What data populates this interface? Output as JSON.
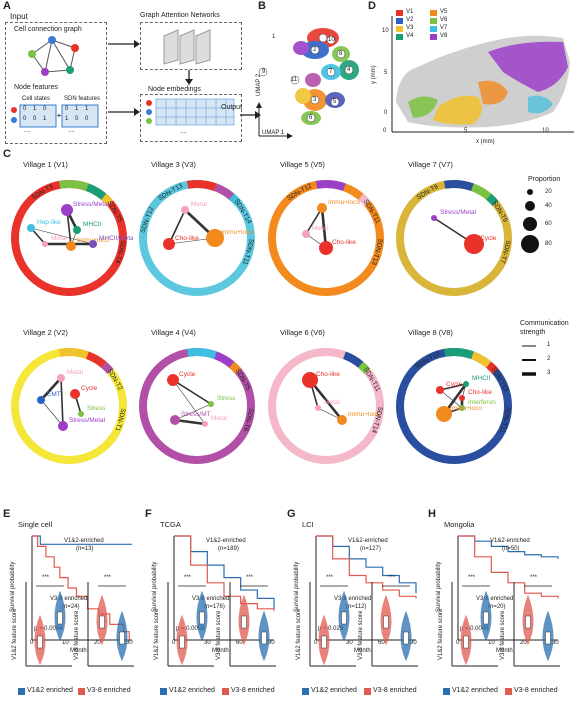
{
  "panels": {
    "A": "A",
    "B": "B",
    "C": "C",
    "D": "D",
    "E": "E",
    "F": "F",
    "G": "G",
    "H": "H"
  },
  "panelA": {
    "input": "Input",
    "cell_graph": "Cell connection graph",
    "node_features": "Node features",
    "cell_states": "Cell states",
    "sdn_features": "SDN features",
    "gat": "Graph Attention Networks",
    "embeddings": "Node embedings",
    "output": "Output",
    "row1": [
      "0",
      "1",
      "0"
    ],
    "row2": [
      "0",
      "0",
      "1"
    ],
    "sdn_row1": [
      "0",
      "1",
      "1"
    ],
    "sdn_row2": [
      "1",
      "0",
      "0"
    ],
    "ellipsis": "...."
  },
  "panelB": {
    "xlabel": "UMAP 1",
    "ylabel": "UMAP 2",
    "clusters": [
      "1",
      "2",
      "3",
      "4",
      "5",
      "6",
      "7",
      "8",
      "9",
      "10",
      "11"
    ]
  },
  "panelD": {
    "xlabel": "x (mm)",
    "ylabel": "y (mm)",
    "xticks": [
      "0",
      "5",
      "10"
    ],
    "yticks": [
      "0",
      "5",
      "10"
    ],
    "legend": [
      {
        "label": "V1",
        "color": "#e8322a"
      },
      {
        "label": "V5",
        "color": "#f28a1e"
      },
      {
        "label": "V2",
        "color": "#2b5fc6"
      },
      {
        "label": "V6",
        "color": "#7cc242"
      },
      {
        "label": "V3",
        "color": "#f2c12e"
      },
      {
        "label": "V7",
        "color": "#3dbfe0"
      },
      {
        "label": "V4",
        "color": "#1a9e77"
      },
      {
        "label": "V8",
        "color": "#9b3fc8"
      }
    ]
  },
  "panelC": {
    "villages": [
      {
        "title": "Village 1 (V1)",
        "ring": "#e8322a",
        "sdn": [
          "SDN-T5",
          "SDN-T4",
          "SDN-T3"
        ],
        "nodes": [
          "Stress/Metal",
          "Hep-like",
          "MHCII",
          "Metal",
          "Immu+loco",
          "MHCII/Metal"
        ]
      },
      {
        "title": "Village 3 (V3)",
        "ring": "#5bc8df",
        "sdn": [
          "SDN-T14",
          "SDN-T11",
          "SDN-T13",
          "SDN-T12"
        ],
        "nodes": [
          "Metal",
          "Cho-like",
          "Immu+loco"
        ]
      },
      {
        "title": "Village 5 (V5)",
        "ring": "#f28a1e",
        "sdn": [
          "SDN-T11",
          "SDN-T13",
          "SDN-T12"
        ],
        "nodes": [
          "Immu+loco",
          "Metal",
          "Cho-like"
        ]
      },
      {
        "title": "Village 7 (V7)",
        "ring": "#d9b53a",
        "sdn": [
          "SDN-T9",
          "SDN-T7",
          "SDN-T8"
        ],
        "nodes": [
          "Stress/Metal",
          "Cycle"
        ]
      },
      {
        "title": "Village 2 (V2)",
        "ring": "#f5e63a",
        "sdn": [
          "SDN-T2",
          "SDN-T1"
        ],
        "nodes": [
          "Metal",
          "Cycle",
          "EMT",
          "Stress",
          "Stress/Metal"
        ]
      },
      {
        "title": "Village 4 (V4)",
        "ring": "#b24fa7",
        "sdn": [
          "SDN-T5",
          "SDN-T6"
        ],
        "nodes": [
          "Cycle",
          "Stress",
          "Stress/MT",
          "Metal"
        ]
      },
      {
        "title": "Village 6 (V6)",
        "ring": "#f4b8c8",
        "sdn": [
          "SDN-T11",
          "SDN-T14"
        ],
        "nodes": [
          "Cho-like",
          "Metal",
          "Immu+loco"
        ]
      },
      {
        "title": "Village 8 (V8)",
        "ring": "#2a4ea0",
        "sdn": [
          "SDN-T13",
          "SDN-T11",
          "SDN-T10"
        ],
        "nodes": [
          "Cycle",
          "MHCII",
          "Cho-like",
          "Interferon",
          "Immu+loco"
        ]
      }
    ],
    "proportion_title": "Proportion",
    "proportion_values": [
      "20",
      "40",
      "60",
      "80"
    ],
    "comm_title1": "Communication",
    "comm_title2": "strength",
    "comm_values": [
      "1",
      "2",
      "3"
    ]
  },
  "survival": [
    {
      "title": "Single cell",
      "g1": "V1&2-enriched",
      "n1": "(n=13)",
      "g2": "V3-8 enriched",
      "n2": "(n=24)",
      "p": "p = 0.0084",
      "xticks": [
        "0",
        "10",
        "20",
        "30"
      ]
    },
    {
      "title": "TCGA",
      "g1": "V1&2-enriched",
      "n1": "(n=189)",
      "g2": "V3-8 enriched",
      "n2": "(n=176)",
      "p": "p = 0.0058",
      "xticks": [
        "0",
        "30",
        "60",
        "90"
      ]
    },
    {
      "title": "LCI",
      "g1": "V1&2-enriched",
      "n1": "(n=127)",
      "g2": "V3-8 enriched",
      "n2": "(n=112)",
      "p": "p = 0.029",
      "xticks": [
        "0",
        "30",
        "60",
        "90"
      ]
    },
    {
      "title": "Mongolia",
      "g1": "V1&2-enriched",
      "n1": "(n=50)",
      "g2": "V3-8 enriched",
      "n2": "(n=20)",
      "p": "p = 0.0045",
      "xticks": [
        "0",
        "10",
        "20",
        "30"
      ]
    }
  ],
  "survival_common": {
    "ylabel": "Survival probability",
    "xlabel": "Month",
    "yticks": [
      "0",
      "0.25",
      "0.50",
      "0.75",
      "1.00"
    ]
  },
  "violins": {
    "y1": "V1&2 feature score",
    "y2": "V3-8 feature score",
    "sig": "***",
    "legend1": "V1&2 enriched",
    "legend2": "V3-8 enriched",
    "color1": "#2a6fb0",
    "color2": "#e05a4f"
  },
  "chart_data": [
    {
      "type": "line",
      "title": "Single cell",
      "xlabel": "Month",
      "ylabel": "Survival probability",
      "ylim": [
        0,
        1
      ],
      "series": [
        {
          "name": "V1&2-enriched",
          "x": [
            0,
            3,
            36
          ],
          "y": [
            1,
            0.92,
            0.92
          ]
        },
        {
          "name": "V3-8 enriched",
          "x": [
            0,
            2,
            5,
            8,
            10,
            13,
            16,
            20,
            24,
            28,
            33,
            35
          ],
          "y": [
            1,
            0.9,
            0.8,
            0.7,
            0.6,
            0.5,
            0.42,
            0.3,
            0.25,
            0.15,
            0.08,
            0
          ]
        }
      ]
    },
    {
      "type": "line",
      "title": "TCGA",
      "xlabel": "Month",
      "ylabel": "Survival probability",
      "ylim": [
        0,
        1
      ],
      "series": [
        {
          "name": "V1&2-enriched",
          "x": [
            0,
            15,
            30,
            45,
            60,
            75,
            90
          ],
          "y": [
            1,
            0.85,
            0.72,
            0.6,
            0.48,
            0.4,
            0.3
          ]
        },
        {
          "name": "V3-8 enriched",
          "x": [
            0,
            15,
            30,
            45,
            60,
            75,
            90
          ],
          "y": [
            1,
            0.72,
            0.55,
            0.42,
            0.35,
            0.3,
            0.28
          ]
        }
      ]
    },
    {
      "type": "line",
      "title": "LCI",
      "xlabel": "Month",
      "ylabel": "Survival probability",
      "ylim": [
        0,
        1
      ],
      "series": [
        {
          "name": "V1&2-enriched",
          "x": [
            0,
            15,
            30,
            45,
            60,
            75,
            90
          ],
          "y": [
            1,
            0.9,
            0.78,
            0.7,
            0.62,
            0.55,
            0.45
          ]
        },
        {
          "name": "V3-8 enriched",
          "x": [
            0,
            15,
            30,
            45,
            60,
            75,
            90
          ],
          "y": [
            1,
            0.78,
            0.62,
            0.55,
            0.48,
            0.42,
            0.4
          ]
        }
      ]
    },
    {
      "type": "line",
      "title": "Mongolia",
      "xlabel": "Month",
      "ylabel": "Survival probability",
      "ylim": [
        0,
        1
      ],
      "series": [
        {
          "name": "V1&2-enriched",
          "x": [
            0,
            5,
            10,
            15,
            20,
            25,
            30
          ],
          "y": [
            1,
            0.95,
            0.9,
            0.85,
            0.82,
            0.8,
            0.78
          ]
        },
        {
          "name": "V3-8 enriched",
          "x": [
            0,
            5,
            10,
            15,
            20,
            25,
            30
          ],
          "y": [
            1,
            0.8,
            0.65,
            0.55,
            0.45,
            0.42,
            0.4
          ]
        }
      ]
    }
  ]
}
